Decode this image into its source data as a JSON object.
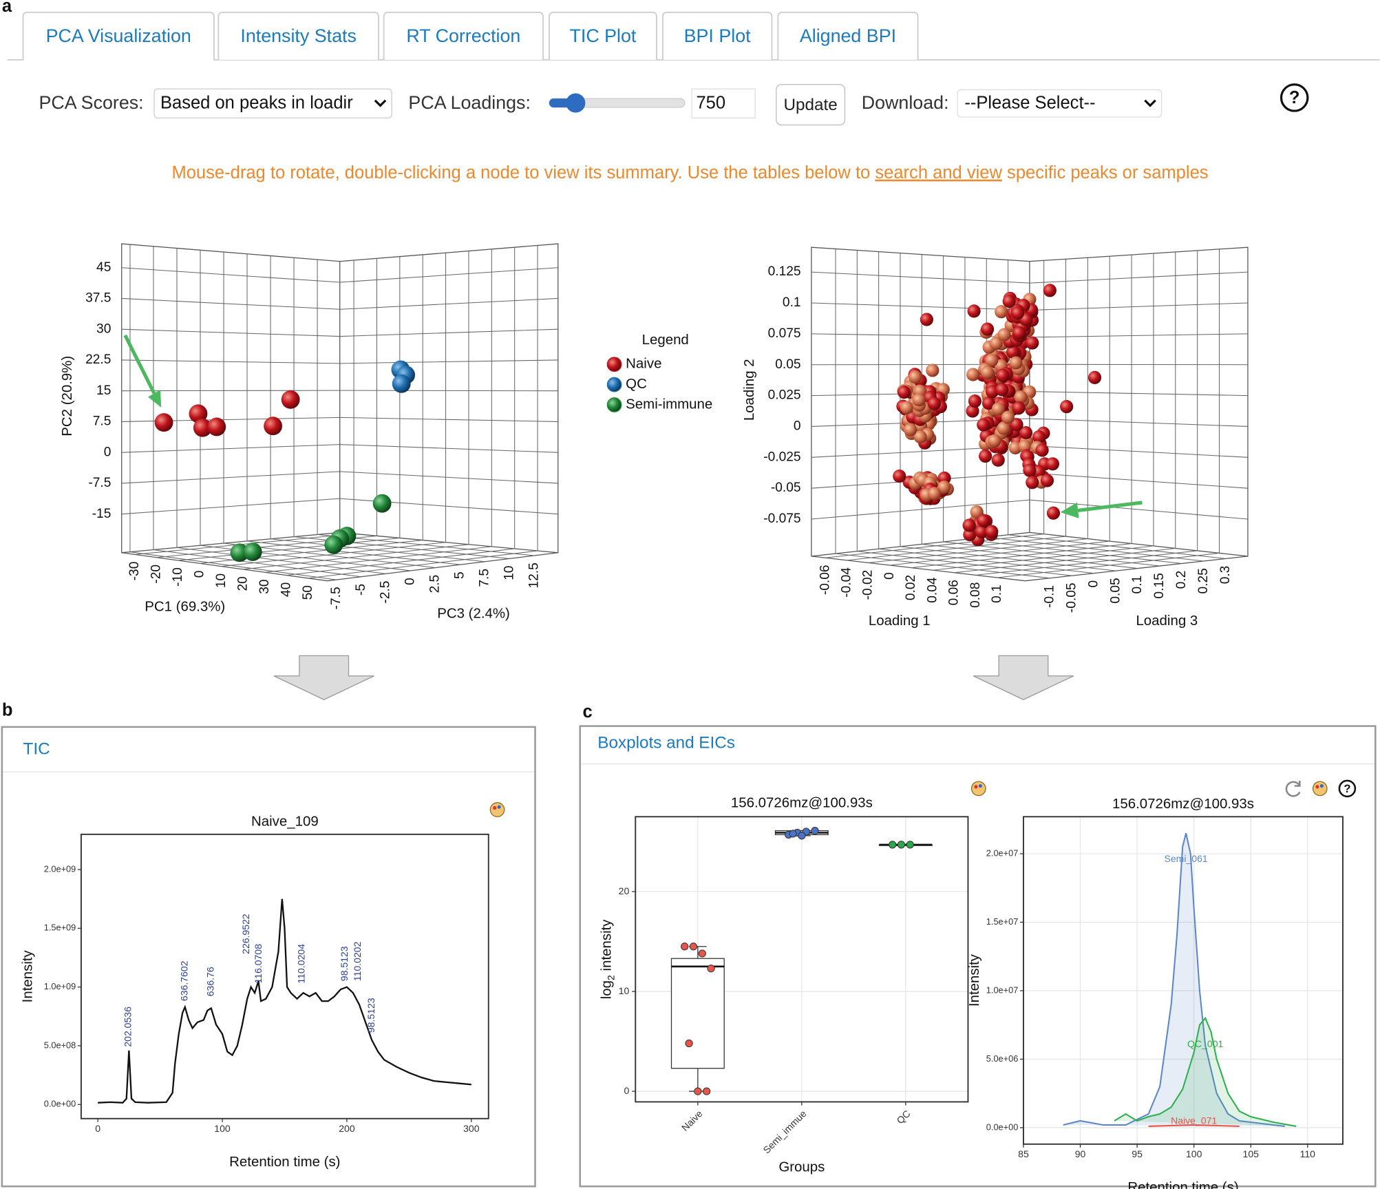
{
  "panel_labels": {
    "a": "a",
    "b": "b",
    "c": "c"
  },
  "tabs": [
    "PCA Visualization",
    "Intensity Stats",
    "RT Correction",
    "TIC Plot",
    "BPI Plot",
    "Aligned BPI"
  ],
  "controls": {
    "scores_label": "PCA Scores:",
    "scores_value": "Based on peaks in loadir",
    "loadings_label": "PCA Loadings:",
    "loadings_value": "750",
    "update": "Update",
    "download_label": "Download:",
    "download_value": "--Please Select--",
    "help": "?"
  },
  "hint": {
    "before": "Mouse-drag to rotate, double-clicking a node to view its summary. Use the tables below to ",
    "link": "search and view",
    "after": " specific peaks or samples"
  },
  "scores_plot": {
    "ylabel": "PC2 (20.9%)",
    "yticks": [
      45,
      37.5,
      30,
      22.5,
      15,
      7.5,
      0,
      -7.5,
      -15
    ],
    "ylim": [
      -24.4,
      50.8
    ],
    "xlabel": "PC1 (69.3%)",
    "xticks": [
      -30,
      -20,
      -10,
      0,
      10,
      20,
      30,
      40,
      50
    ],
    "xlim": [
      -36.1,
      58.9
    ],
    "zlabel": "PC3 (2.4%)",
    "zticks": [
      -7.5,
      -5,
      -2.5,
      0,
      2.5,
      5,
      7.5,
      10,
      12.5
    ],
    "zlim": [
      -8.4,
      14.9
    ],
    "legend": {
      "title": "Legend",
      "items": [
        {
          "name": "Naive",
          "color": "#c0141c"
        },
        {
          "name": "QC",
          "color": "#1f6fb0"
        },
        {
          "name": "Semi-immune",
          "color": "#23883a"
        }
      ]
    }
  },
  "loadings_plot": {
    "ylabel": "Loading 2",
    "yticks": [
      0.125,
      0.1,
      0.075,
      0.05,
      0.025,
      0,
      -0.025,
      -0.05,
      -0.075
    ],
    "ylim": [
      -0.105,
      0.145
    ],
    "xlabel": "Loading 1",
    "xticks": [
      -0.06,
      -0.04,
      -0.02,
      0,
      0.02,
      0.04,
      0.06,
      0.08,
      0.1
    ],
    "xlim": [
      -0.073,
      0.126
    ],
    "zlabel": "Loading 3",
    "zticks": [
      -0.1,
      -0.05,
      0,
      0.05,
      0.1,
      0.15,
      0.2,
      0.25,
      0.3
    ],
    "zlim": [
      -0.156,
      0.35
    ]
  },
  "tic": {
    "header": "TIC",
    "title": "Naive_109",
    "xlabel": "Retention time (s)",
    "ylabel": "Intensity",
    "xticks": [
      0,
      100,
      200,
      300
    ],
    "xlim": [
      -13.4,
      313.8
    ],
    "yticks": [
      {
        "value": 0,
        "label": "0.0e+00"
      },
      {
        "value": 500000000,
        "label": "5.0e+08"
      },
      {
        "value": 1000000000,
        "label": "1.0e+09"
      },
      {
        "value": 1500000000,
        "label": "1.5e+09"
      },
      {
        "value": 2000000000,
        "label": "2.0e+09"
      }
    ],
    "ylim": [
      -120000000,
      2300000000
    ],
    "x": [
      0,
      10,
      20,
      23,
      25,
      27,
      30,
      40,
      55,
      60,
      62,
      65,
      68,
      70,
      73,
      76,
      80,
      85,
      88,
      91,
      95,
      100,
      104,
      108,
      112,
      116,
      120,
      123,
      126,
      129,
      131,
      135,
      140,
      145,
      148,
      150,
      152,
      155,
      160,
      165,
      170,
      175,
      180,
      185,
      190,
      195,
      200,
      205,
      210,
      215,
      220,
      225,
      230,
      240,
      250,
      260,
      270,
      280,
      290,
      300
    ],
    "values": [
      15000000.0,
      20000000.0,
      15000000.0,
      50000000.0,
      460000000.0,
      50000000.0,
      20000000.0,
      15000000.0,
      20000000.0,
      100000000.0,
      350000000.0,
      600000000.0,
      780000000.0,
      830000000.0,
      720000000.0,
      650000000.0,
      700000000.0,
      720000000.0,
      800000000.0,
      820000000.0,
      680000000.0,
      600000000.0,
      450000000.0,
      420000000.0,
      500000000.0,
      680000000.0,
      900000000.0,
      1000000000.0,
      950000000.0,
      1050000000.0,
      880000000.0,
      900000000.0,
      1000000000.0,
      1300000000.0,
      1750000000.0,
      1500000000.0,
      1000000000.0,
      950000000.0,
      900000000.0,
      950000000.0,
      920000000.0,
      950000000.0,
      880000000.0,
      880000000.0,
      920000000.0,
      980000000.0,
      1000000000.0,
      950000000.0,
      850000000.0,
      700000000.0,
      550000000.0,
      450000000.0,
      380000000.0,
      320000000.0,
      270000000.0,
      230000000.0,
      200000000.0,
      190000000.0,
      180000000.0,
      170000000.0
    ],
    "annotations": [
      {
        "label": "202.0536",
        "x": 24.7,
        "y": 490000000
      },
      {
        "label": "636.7602",
        "x": 70,
        "y": 880000000
      },
      {
        "label": "636.76",
        "x": 91,
        "y": 920000000
      },
      {
        "label": "226.9522",
        "x": 119.4,
        "y": 1280000000
      },
      {
        "label": "116.0708",
        "x": 129.3,
        "y": 1030000000
      },
      {
        "label": "110.0204",
        "x": 164,
        "y": 1030000000
      },
      {
        "label": "98.5123",
        "x": 198.6,
        "y": 1050000000
      },
      {
        "label": "110.0202",
        "x": 209,
        "y": 1050000000
      },
      {
        "label": "98.5123",
        "x": 220,
        "y": 610000000
      }
    ]
  },
  "boxplot_panel": {
    "header": "Boxplots and EICs"
  },
  "boxplot": {
    "title": "156.0726mz@100.93s",
    "xlabel": "Groups",
    "ylabel": {
      "base": "log",
      "sub": "2",
      "rest": " intensity"
    },
    "yticks": [
      0,
      10,
      20
    ],
    "ylim": [
      -1.06,
      27.5
    ],
    "categories": [
      "Naive",
      "Semi_immue",
      "QC"
    ],
    "colors": [
      "#e8554a",
      "#4a74c6",
      "#2aa84a"
    ],
    "boxes": [
      {
        "min": 0,
        "q1": 2.3,
        "median": 12.5,
        "q3": 13.3,
        "max": 14.5
      },
      {
        "min": 25.6,
        "q1": 25.7,
        "median": 25.9,
        "q3": 26.1,
        "max": 26.1
      },
      {
        "min": 24.7,
        "q1": 24.7,
        "median": 24.7,
        "q3": 24.7,
        "max": 24.7
      }
    ],
    "points": [
      [
        14.5,
        14.5,
        13.8,
        12.3,
        4.8,
        0,
        0
      ],
      [
        25.7,
        25.9,
        26,
        26.1,
        25.8,
        25.6
      ],
      [
        24.7,
        24.7,
        24.7
      ]
    ]
  },
  "eic": {
    "title": "156.0726mz@100.93s",
    "xlabel": "Retention time (s)",
    "ylabel": "Intensity",
    "xticks": [
      85,
      90,
      95,
      100,
      105,
      110
    ],
    "xlim": [
      85,
      113.1
    ],
    "yticks": [
      {
        "value": 0,
        "label": "0.0e+00"
      },
      {
        "value": 5000000,
        "label": "5.0e+06"
      },
      {
        "value": 10000000,
        "label": "1.0e+07"
      },
      {
        "value": 15000000,
        "label": "1.5e+07"
      },
      {
        "value": 20000000,
        "label": "2.0e+07"
      }
    ],
    "ylim": [
      -1200000,
      22700000
    ],
    "series": [
      {
        "name": "Semi_061",
        "color": "#5b86cc",
        "x": [
          88.5,
          90,
          92,
          94,
          96,
          97,
          98,
          98.5,
          99,
          99.3,
          99.7,
          100,
          100.5,
          101,
          102,
          103,
          104,
          106,
          108
        ],
        "values": [
          200000,
          500000,
          200000,
          200000,
          1000000,
          3000000,
          9000000,
          14000000,
          20500000,
          21500000,
          20000000,
          16000000,
          10000000,
          6000000,
          2500000,
          1000000,
          500000,
          300000,
          100000
        ]
      },
      {
        "name": "QC_001",
        "color": "#2db04b",
        "x": [
          93,
          94,
          95,
          96,
          97,
          98,
          99,
          100,
          100.5,
          101,
          101.5,
          102,
          103,
          104,
          105,
          107,
          109
        ],
        "values": [
          500000,
          1000000,
          500000,
          800000,
          1000000,
          1500000,
          2800000,
          5500000,
          7500000,
          8000000,
          7000000,
          5000000,
          2500000,
          1200000,
          800000,
          400000,
          100000
        ]
      },
      {
        "name": "Naive_071",
        "color": "#e0574c",
        "x": [
          96,
          98,
          100,
          102,
          104
        ],
        "values": [
          100000,
          150000,
          200000,
          150000,
          100000
        ]
      }
    ]
  }
}
